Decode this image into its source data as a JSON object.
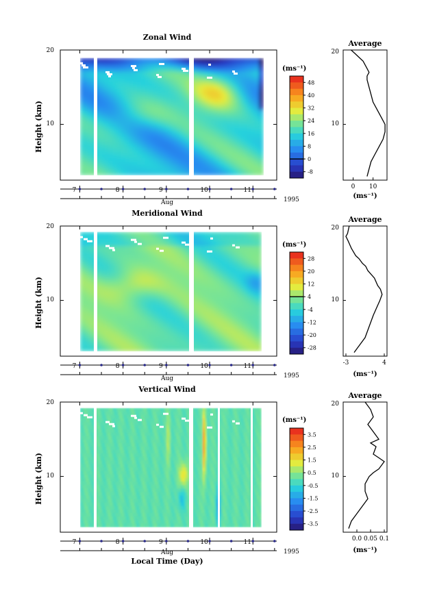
{
  "figure": {
    "xlabel": "Local Time (Day)",
    "month_label": "Aug",
    "year_label": "1995",
    "avg_title": "Average"
  },
  "chart_data": [
    {
      "type": "heatmap",
      "name": "zonal",
      "title": "Zonal Wind",
      "ylabel": "Height (km)",
      "unit": "(ms⁻¹)",
      "x_ticks": [
        "7",
        "8",
        "9",
        "10",
        "11"
      ],
      "xlim": [
        6.55,
        11.55
      ],
      "ylim": [
        2.5,
        20
      ],
      "y_ticks": [
        "10",
        "20"
      ],
      "colorbar_ticks": [
        "48",
        "40",
        "32",
        "24",
        "16",
        "8",
        "0",
        "-8"
      ],
      "colorbar_range": [
        -12,
        52
      ],
      "avg_x_ticks": [
        "0",
        "10"
      ],
      "avg_xlim": [
        -5,
        17
      ],
      "avg_profile": {
        "x": [
          7,
          8,
          9,
          11,
          13,
          15,
          16,
          16,
          15,
          14,
          13,
          12,
          10,
          9,
          8,
          7,
          7,
          8,
          7,
          6,
          5,
          3,
          1,
          -1
        ],
        "height": [
          3,
          4,
          5,
          6,
          7,
          8,
          9,
          10,
          10.5,
          11,
          11.5,
          12,
          13,
          14,
          15,
          16,
          16.5,
          17,
          17.5,
          18,
          18.5,
          19,
          19.5,
          20
        ]
      }
    },
    {
      "type": "heatmap",
      "name": "meridional",
      "title": "Meridional Wind",
      "ylabel": "Height (km)",
      "unit": "(ms⁻¹)",
      "x_ticks": [
        "7",
        "8",
        "9",
        "10",
        "11"
      ],
      "xlim": [
        6.55,
        11.55
      ],
      "ylim": [
        2.5,
        20
      ],
      "y_ticks": [
        "10",
        "20"
      ],
      "colorbar_ticks": [
        "28",
        "20",
        "12",
        "4",
        "-4",
        "-12",
        "-20",
        "-28"
      ],
      "colorbar_range": [
        -32,
        32
      ],
      "avg_x_ticks": [
        "-3",
        "4"
      ],
      "avg_xlim": [
        -3.5,
        4.5
      ],
      "avg_profile": {
        "x": [
          -1.5,
          -0.5,
          0.5,
          1.0,
          1.5,
          2.0,
          2.6,
          3.2,
          3.6,
          3.3,
          2.8,
          2.2,
          1.6,
          1.0,
          0.6,
          0.0,
          -0.6,
          -1.2,
          -2.0,
          -2.6,
          -3.0,
          -2.7,
          -2.4
        ],
        "height": [
          3,
          4,
          5,
          6,
          7,
          8,
          9,
          10,
          10.8,
          11.5,
          12,
          13,
          13.5,
          14,
          14.6,
          15,
          15.6,
          16,
          17,
          18,
          18.6,
          19,
          20
        ]
      }
    },
    {
      "type": "heatmap",
      "name": "vertical",
      "title": "Vertical Wind",
      "ylabel": "Height (km)",
      "unit": "(ms⁻¹)",
      "x_ticks": [
        "7",
        "8",
        "9",
        "10",
        "11"
      ],
      "xlim": [
        6.55,
        11.55
      ],
      "ylim": [
        2.5,
        20
      ],
      "y_ticks": [
        "10",
        "20"
      ],
      "colorbar_ticks": [
        "3.5",
        "2.5",
        "1.5",
        "0.5",
        "-0.5",
        "-1.5",
        "-2.5",
        "-3.5"
      ],
      "colorbar_range": [
        -4,
        4
      ],
      "avg_x_ticks": [
        "0.0",
        "0.05",
        "0.1"
      ],
      "avg_xlim": [
        -0.05,
        0.11
      ],
      "avg_profile": {
        "x": [
          -0.03,
          -0.02,
          0.0,
          0.02,
          0.04,
          0.035,
          0.03,
          0.03,
          0.045,
          0.06,
          0.08,
          0.1,
          0.08,
          0.06,
          0.07,
          0.05,
          0.08,
          0.06,
          0.04,
          0.06,
          0.05,
          0.03
        ],
        "height": [
          3,
          4,
          5,
          6,
          7,
          7.5,
          8,
          9,
          10,
          10.5,
          11,
          12,
          12.5,
          13,
          14,
          14.5,
          15,
          16,
          17,
          18,
          19,
          20
        ]
      }
    }
  ]
}
